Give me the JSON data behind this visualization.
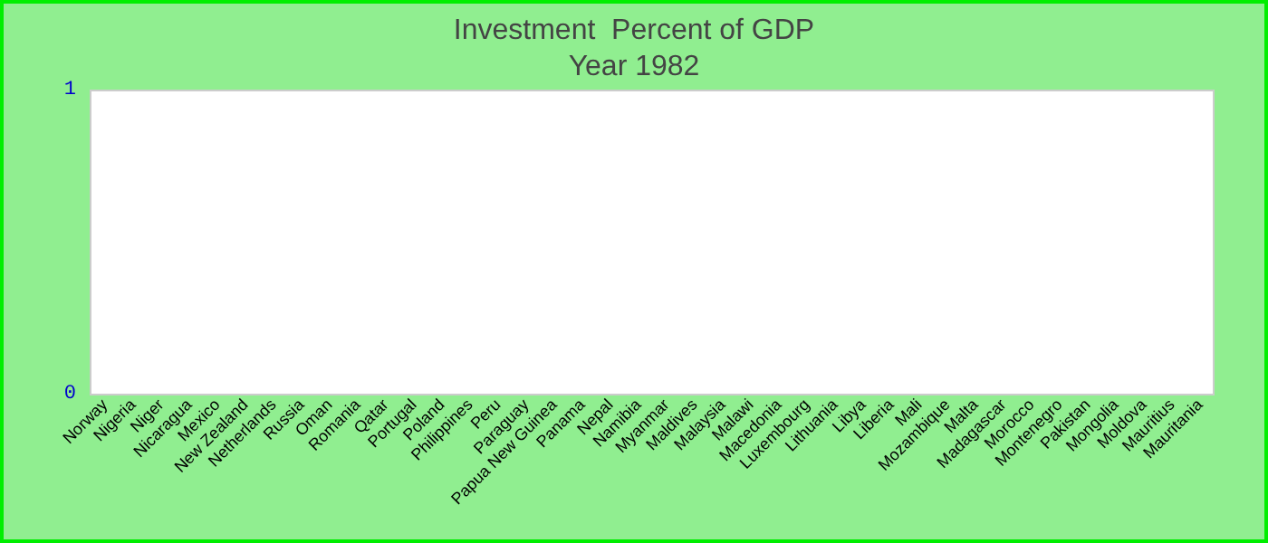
{
  "chart_data": {
    "type": "bar",
    "title": "Investment  Percent of GDP",
    "subtitle": "Year 1982",
    "categories": [
      "Norway",
      "Nigeria",
      "Niger",
      "Nicaragua",
      "Mexico",
      "New Zealand",
      "Netherlands",
      "Russia",
      "Oman",
      "Romania",
      "Qatar",
      "Portugal",
      "Poland",
      "Philippines",
      "Peru",
      "Paraguay",
      "Papua New Guinea",
      "Panama",
      "Nepal",
      "Namibia",
      "Myanmar",
      "Maldives",
      "Malaysia",
      "Malawi",
      "Macedonia",
      "Luxembourg",
      "Lithuania",
      "Libya",
      "Liberia",
      "Mali",
      "Mozambique",
      "Malta",
      "Madagascar",
      "Morocco",
      "Montenegro",
      "Pakistan",
      "Mongolia",
      "Moldova",
      "Mauritius",
      "Mauritania"
    ],
    "values": [
      null,
      null,
      null,
      null,
      null,
      null,
      null,
      null,
      null,
      null,
      null,
      null,
      null,
      null,
      null,
      null,
      null,
      null,
      null,
      null,
      null,
      null,
      null,
      null,
      null,
      null,
      null,
      null,
      null,
      null,
      null,
      null,
      null,
      null,
      null,
      null,
      null,
      null,
      null,
      null
    ],
    "ylim": [
      0,
      1
    ],
    "yticks": [
      0,
      1
    ],
    "grid": false
  }
}
